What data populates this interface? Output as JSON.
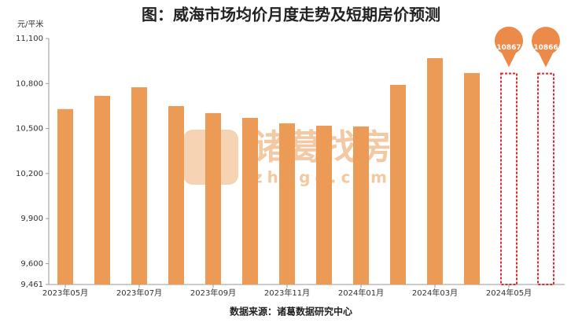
{
  "chart_data": {
    "type": "bar",
    "title": "图：威海市场均价月度走势及短期房价预测",
    "y_unit": "元/平米",
    "source": "数据来源：诸葛数据研究中心",
    "watermark": [
      "诸葛找房",
      "zhuge.com"
    ],
    "categories": [
      "2023年05月",
      null,
      "2023年07月",
      null,
      "2023年09月",
      null,
      "2023年11月",
      null,
      "2024年01月",
      null,
      "2024年03月",
      null,
      "2024年05月",
      null
    ],
    "values": [
      10630,
      10718,
      10775,
      10650,
      10603,
      10571,
      10535,
      10519,
      10514,
      10791,
      10969,
      10870,
      null,
      null
    ],
    "forecast_values": [
      null,
      null,
      null,
      null,
      null,
      null,
      null,
      null,
      null,
      null,
      null,
      null,
      10867,
      10866
    ],
    "color": "#ec9b57",
    "forecast_color": "#e0282e",
    "ylim": [
      9461,
      11100
    ],
    "yticks": [
      {
        "value": 9461,
        "label": "9,461"
      },
      {
        "value": 9600,
        "label": "9,600"
      },
      {
        "value": 9900,
        "label": "9,900"
      },
      {
        "value": 10200,
        "label": "10,200"
      },
      {
        "value": 10500,
        "label": "10,500"
      },
      {
        "value": 10800,
        "label": "10,800"
      },
      {
        "value": 11100,
        "label": "11,100"
      }
    ]
  }
}
